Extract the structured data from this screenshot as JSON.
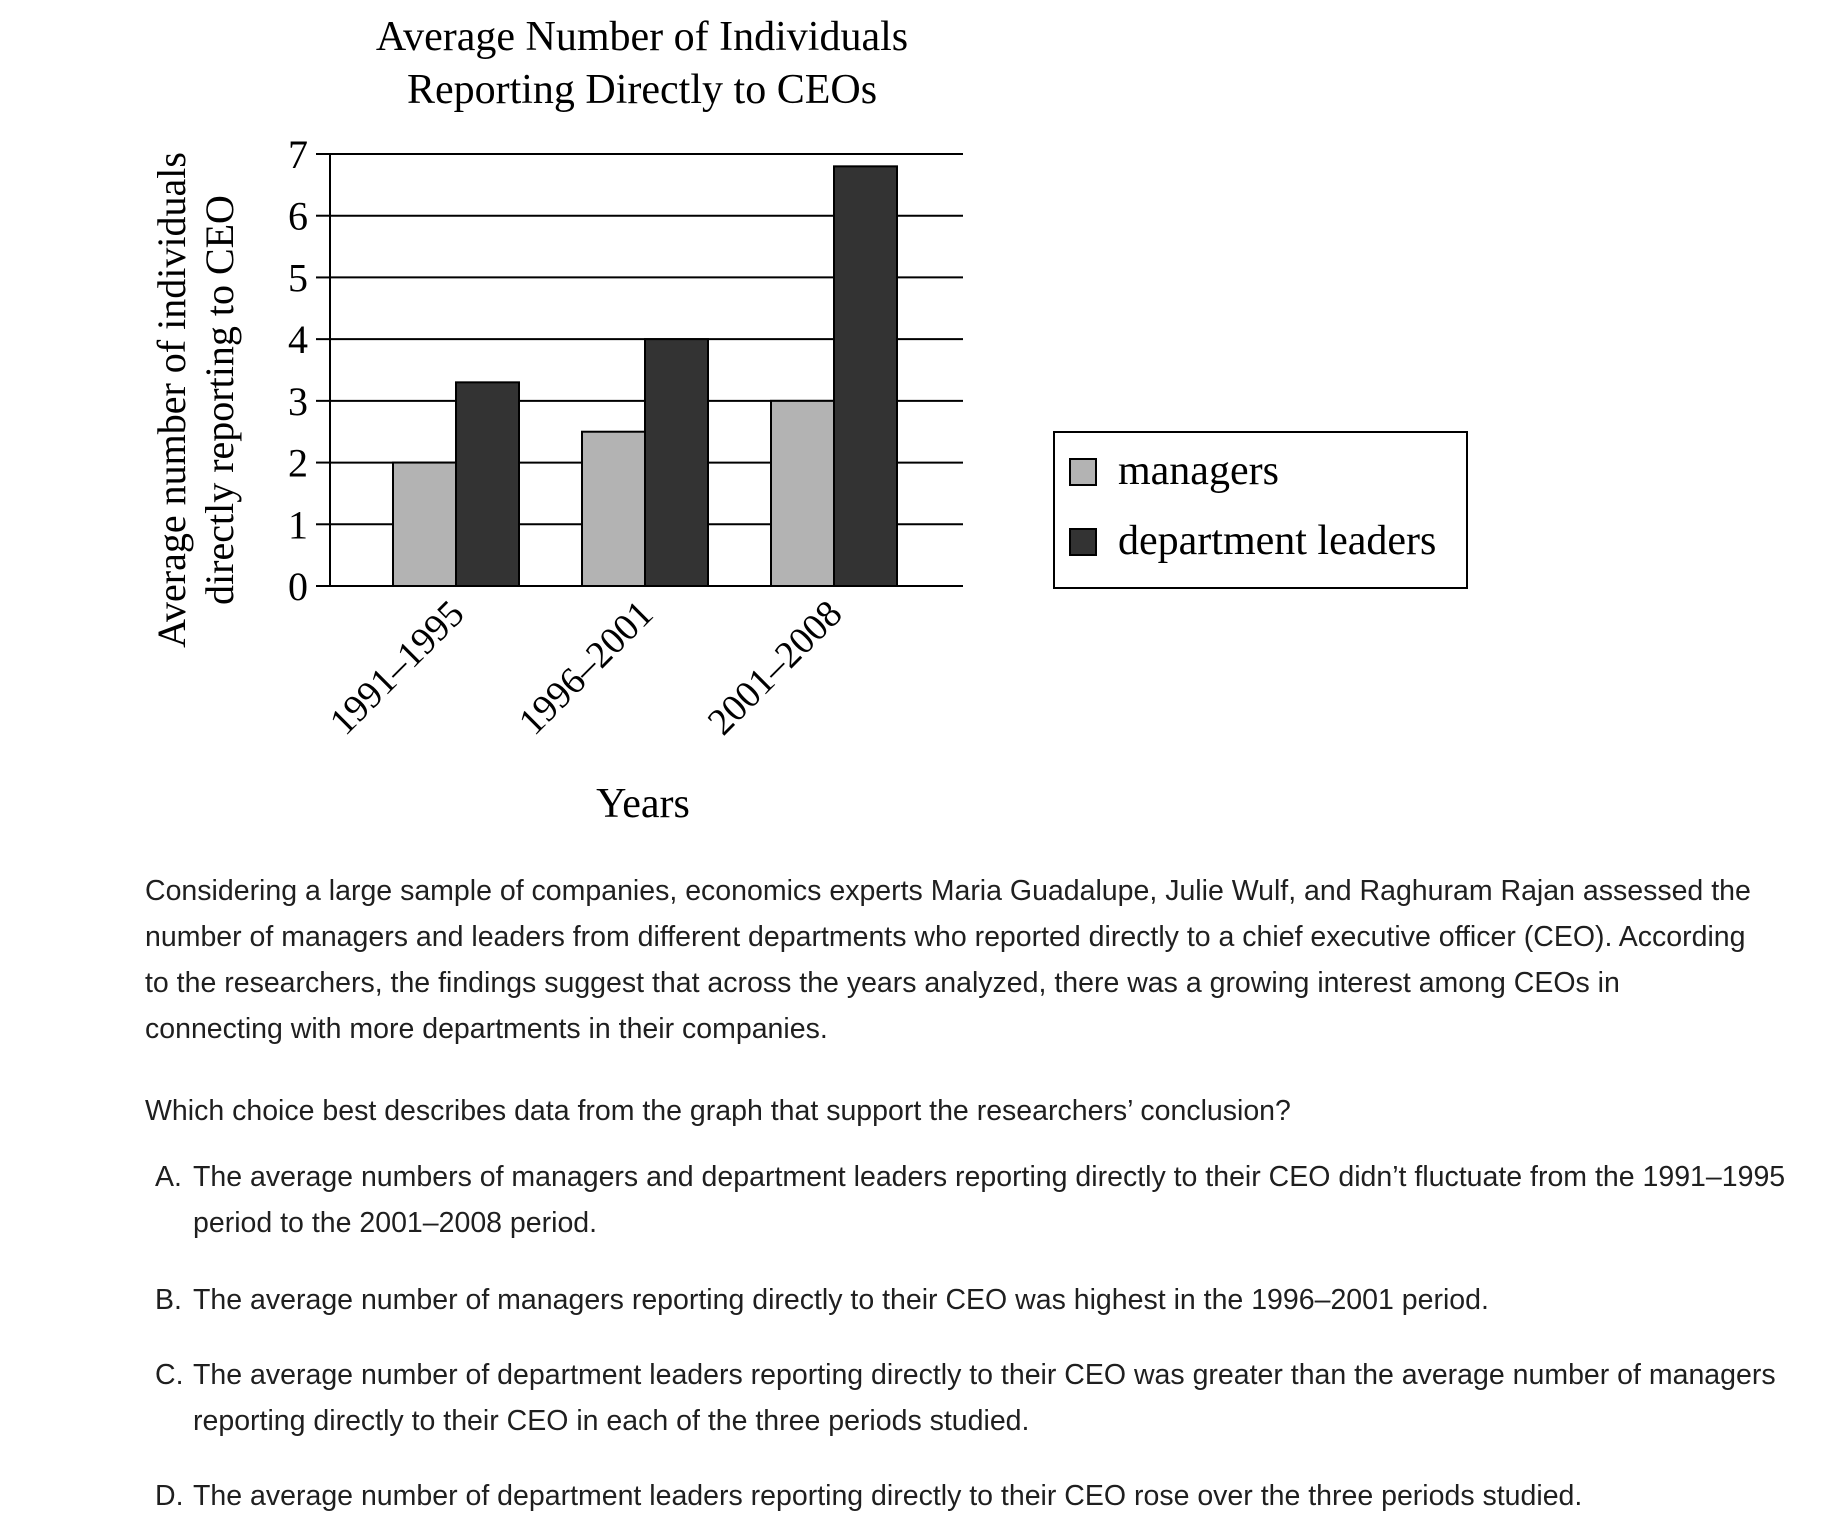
{
  "chart_data": {
    "type": "bar",
    "title": [
      "Average Number of Individuals",
      "Reporting Directly to CEOs"
    ],
    "xlabel": "Years",
    "ylabel": [
      "Average number of individuals",
      "directly reporting to CEO"
    ],
    "categories": [
      "1991–1995",
      "1996–2001",
      "2001–2008"
    ],
    "series": [
      {
        "name": "managers",
        "values": [
          2,
          2.5,
          3
        ],
        "color": "#b3b3b3"
      },
      {
        "name": "department leaders",
        "values": [
          3.3,
          4,
          6.8
        ],
        "color": "#333333"
      }
    ],
    "ylim": [
      0,
      7
    ],
    "yticks": [
      "0",
      "1",
      "2",
      "3",
      "4",
      "5",
      "6",
      "7"
    ],
    "grid": true,
    "legend_position": "right"
  },
  "passage": "Considering a large sample of companies, economics experts Maria Guadalupe, Julie Wulf, and Raghuram Rajan assessed the number of managers and leaders from different departments who reported directly to a chief executive officer (CEO). According to the researchers, the findings suggest that across the years analyzed, there was a growing interest among CEOs in connecting with more departments in their companies.",
  "question": "Which choice best describes data from the graph that support the researchers’ conclusion?",
  "choices": [
    {
      "letter": "A.",
      "text": "The average numbers of managers and department leaders reporting directly to their CEO didn’t fluctuate from the 1991–1995 period to the 2001–2008 period."
    },
    {
      "letter": "B.",
      "text": "The average number of managers reporting directly to their CEO was highest in the 1996–2001 period."
    },
    {
      "letter": "C.",
      "text": "The average number of department leaders reporting directly to their CEO was greater than the average number of managers reporting directly to their CEO in each of the three periods studied."
    },
    {
      "letter": "D.",
      "text": "The average number of department leaders reporting directly to their CEO rose over the three periods studied."
    }
  ]
}
